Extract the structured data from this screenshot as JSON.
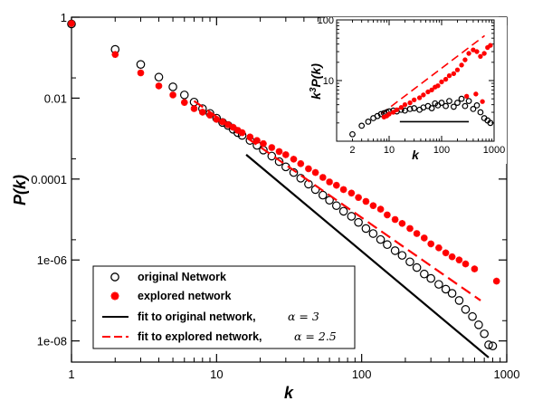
{
  "chart_data": [
    {
      "type": "scatter",
      "xlabel": "k",
      "ylabel": "P(k)",
      "xscale": "log",
      "yscale": "log",
      "xlim": [
        1,
        1000
      ],
      "ylim": [
        3e-09,
        1
      ],
      "x_ticks": [
        1,
        10,
        100,
        1000
      ],
      "x_tick_labels": [
        "1",
        "10",
        "100",
        "1000"
      ],
      "y_ticks": [
        1e-08,
        1e-06,
        0.0001,
        0.01,
        1
      ],
      "y_tick_labels": [
        "1e-08",
        "1e-06",
        "0.0001",
        "0.01",
        "1"
      ],
      "legend_position": "bottom-left",
      "series": [
        {
          "name": "original Network",
          "marker": "open-circle",
          "color": "#000000",
          "points": [
            [
              1,
              0.68
            ],
            [
              2,
              0.16
            ],
            [
              3,
              0.068
            ],
            [
              4,
              0.033
            ],
            [
              5,
              0.019
            ],
            [
              6,
              0.012
            ],
            [
              7,
              0.008
            ],
            [
              8,
              0.0055
            ],
            [
              9,
              0.0042
            ],
            [
              10,
              0.0032
            ],
            [
              11,
              0.0025
            ],
            [
              12,
              0.0021
            ],
            [
              13,
              0.0017
            ],
            [
              14,
              0.0014
            ],
            [
              15,
              0.0012
            ],
            [
              17,
              0.0009
            ],
            [
              19,
              0.00068
            ],
            [
              21,
              0.00052
            ],
            [
              24,
              0.00037
            ],
            [
              27,
              0.00027
            ],
            [
              30,
              0.0002
            ],
            [
              34,
              0.000145
            ],
            [
              38,
              0.000105
            ],
            [
              43,
              7.5e-05
            ],
            [
              48,
              5.5e-05
            ],
            [
              54,
              4e-05
            ],
            [
              60,
              3e-05
            ],
            [
              67,
              2.2e-05
            ],
            [
              75,
              1.6e-05
            ],
            [
              85,
              1.2e-05
            ],
            [
              95,
              8.5e-06
            ],
            [
              107,
              6e-06
            ],
            [
              120,
              4.5e-06
            ],
            [
              135,
              3.2e-06
            ],
            [
              150,
              2.4e-06
            ],
            [
              170,
              1.7e-06
            ],
            [
              190,
              1.3e-06
            ],
            [
              215,
              9e-07
            ],
            [
              240,
              6.5e-07
            ],
            [
              270,
              4.5e-07
            ],
            [
              300,
              3.5e-07
            ],
            [
              340,
              2.5e-07
            ],
            [
              380,
              1.9e-07
            ],
            [
              420,
              1.5e-07
            ],
            [
              470,
              1e-07
            ],
            [
              520,
              6e-08
            ],
            [
              580,
              4e-08
            ],
            [
              640,
              2.5e-08
            ],
            [
              700,
              1.5e-08
            ],
            [
              750,
              8e-09
            ],
            [
              800,
              7.5e-09
            ]
          ]
        },
        {
          "name": "explored network",
          "marker": "star",
          "color": "#ff0000",
          "points": [
            [
              1,
              0.7
            ],
            [
              2,
              0.12
            ],
            [
              3,
              0.042
            ],
            [
              4,
              0.02
            ],
            [
              5,
              0.012
            ],
            [
              6,
              0.0078
            ],
            [
              7,
              0.0055
            ],
            [
              8,
              0.0045
            ],
            [
              9,
              0.0038
            ],
            [
              10,
              0.003
            ],
            [
              11,
              0.0026
            ],
            [
              12,
              0.0022
            ],
            [
              13,
              0.0019
            ],
            [
              14,
              0.0016
            ],
            [
              15,
              0.0014
            ],
            [
              17,
              0.0011
            ],
            [
              19,
              0.0009
            ],
            [
              21,
              0.00075
            ],
            [
              24,
              0.0006
            ],
            [
              27,
              0.00048
            ],
            [
              30,
              0.0004
            ],
            [
              34,
              0.00031
            ],
            [
              38,
              0.00024
            ],
            [
              43,
              0.00018
            ],
            [
              48,
              0.000145
            ],
            [
              54,
              0.00011
            ],
            [
              60,
              8.5e-05
            ],
            [
              67,
              7e-05
            ],
            [
              75,
              5.5e-05
            ],
            [
              85,
              4.5e-05
            ],
            [
              95,
              3.5e-05
            ],
            [
              107,
              2.8e-05
            ],
            [
              120,
              2.2e-05
            ],
            [
              135,
              1.8e-05
            ],
            [
              150,
              1.3e-05
            ],
            [
              170,
              1e-05
            ],
            [
              190,
              8e-06
            ],
            [
              215,
              6e-06
            ],
            [
              240,
              4.5e-06
            ],
            [
              270,
              3.5e-06
            ],
            [
              300,
              2.5e-06
            ],
            [
              340,
              2e-06
            ],
            [
              380,
              1.5e-06
            ],
            [
              420,
              1.2e-06
            ],
            [
              470,
              1e-06
            ],
            [
              520,
              8e-07
            ],
            [
              600,
              6e-07
            ],
            [
              850,
              3e-07
            ]
          ]
        }
      ],
      "fits": [
        {
          "name": "fit to original network,",
          "alpha_label": "α = 3",
          "style": "solid",
          "color": "#000000",
          "x": [
            16,
            750
          ],
          "y": [
            0.0004,
            3.9e-09
          ]
        },
        {
          "name": "fit to explored network,",
          "alpha_label": "α = 2.5",
          "style": "dashed",
          "color": "#ff0000",
          "x": [
            7,
            660
          ],
          "y": [
            0.0085,
            1e-07
          ]
        }
      ]
    },
    {
      "type": "scatter",
      "inset": true,
      "xlabel": "k",
      "ylabel_parts": {
        "k": "k",
        "exp": "3",
        "rest": "P(k)"
      },
      "xscale": "log",
      "yscale": "log",
      "xlim": [
        1,
        1000
      ],
      "ylim": [
        1,
        100
      ],
      "x_ticks": [
        1,
        10,
        100,
        1000
      ],
      "x_tick_labels": [
        "",
        "10",
        "100",
        "1000"
      ],
      "extra_x_labels": [
        {
          "x": 2,
          "label": "2"
        }
      ],
      "y_ticks": [
        1,
        10,
        100
      ],
      "y_tick_labels": [
        "",
        "10",
        "100"
      ],
      "series": [
        {
          "name": "original Network",
          "marker": "open-circle",
          "color": "#000000",
          "points": [
            [
              2,
              1.3
            ],
            [
              3,
              1.8
            ],
            [
              4,
              2.1
            ],
            [
              5,
              2.4
            ],
            [
              6,
              2.6
            ],
            [
              7,
              2.8
            ],
            [
              8,
              2.9
            ],
            [
              9,
              3.0
            ],
            [
              10,
              3.1
            ],
            [
              12,
              3.2
            ],
            [
              14,
              3.1
            ],
            [
              17,
              3.3
            ],
            [
              20,
              3.2
            ],
            [
              25,
              3.4
            ],
            [
              30,
              3.5
            ],
            [
              38,
              3.3
            ],
            [
              45,
              3.6
            ],
            [
              55,
              3.8
            ],
            [
              65,
              3.5
            ],
            [
              75,
              4.2
            ],
            [
              85,
              3.9
            ],
            [
              100,
              4.3
            ],
            [
              120,
              3.8
            ],
            [
              140,
              4.6
            ],
            [
              170,
              3.7
            ],
            [
              200,
              4.3
            ],
            [
              240,
              5.0
            ],
            [
              280,
              3.8
            ],
            [
              330,
              4.6
            ],
            [
              400,
              3.4
            ],
            [
              470,
              3.9
            ],
            [
              550,
              3.0
            ],
            [
              650,
              2.4
            ],
            [
              750,
              2.2
            ],
            [
              850,
              2.0
            ]
          ]
        },
        {
          "name": "explored network",
          "marker": "star",
          "color": "#ff0000",
          "points": [
            [
              8,
              2.5
            ],
            [
              9,
              2.6
            ],
            [
              10,
              2.8
            ],
            [
              12,
              3.0
            ],
            [
              14,
              3.3
            ],
            [
              17,
              3.6
            ],
            [
              20,
              4.0
            ],
            [
              25,
              4.3
            ],
            [
              30,
              4.8
            ],
            [
              38,
              5.2
            ],
            [
              45,
              5.8
            ],
            [
              55,
              6.5
            ],
            [
              65,
              7.0
            ],
            [
              75,
              7.8
            ],
            [
              85,
              8.2
            ],
            [
              100,
              9.5
            ],
            [
              120,
              10.5
            ],
            [
              140,
              12
            ],
            [
              170,
              13
            ],
            [
              200,
              15
            ],
            [
              240,
              18
            ],
            [
              280,
              22
            ],
            [
              330,
              28
            ],
            [
              400,
              32
            ],
            [
              470,
              30
            ],
            [
              550,
              25
            ],
            [
              650,
              28
            ],
            [
              750,
              35
            ],
            [
              850,
              38
            ],
            [
              300,
              5.5
            ],
            [
              450,
              6.0
            ],
            [
              600,
              4.5
            ]
          ]
        }
      ],
      "fits": [
        {
          "style": "solid",
          "color": "#000000",
          "x": [
            16,
            330
          ],
          "y": [
            2.1,
            2.1
          ]
        },
        {
          "style": "dashed",
          "color": "#ff0000",
          "x": [
            7,
            660
          ],
          "y": [
            2.8,
            55
          ]
        }
      ]
    }
  ]
}
